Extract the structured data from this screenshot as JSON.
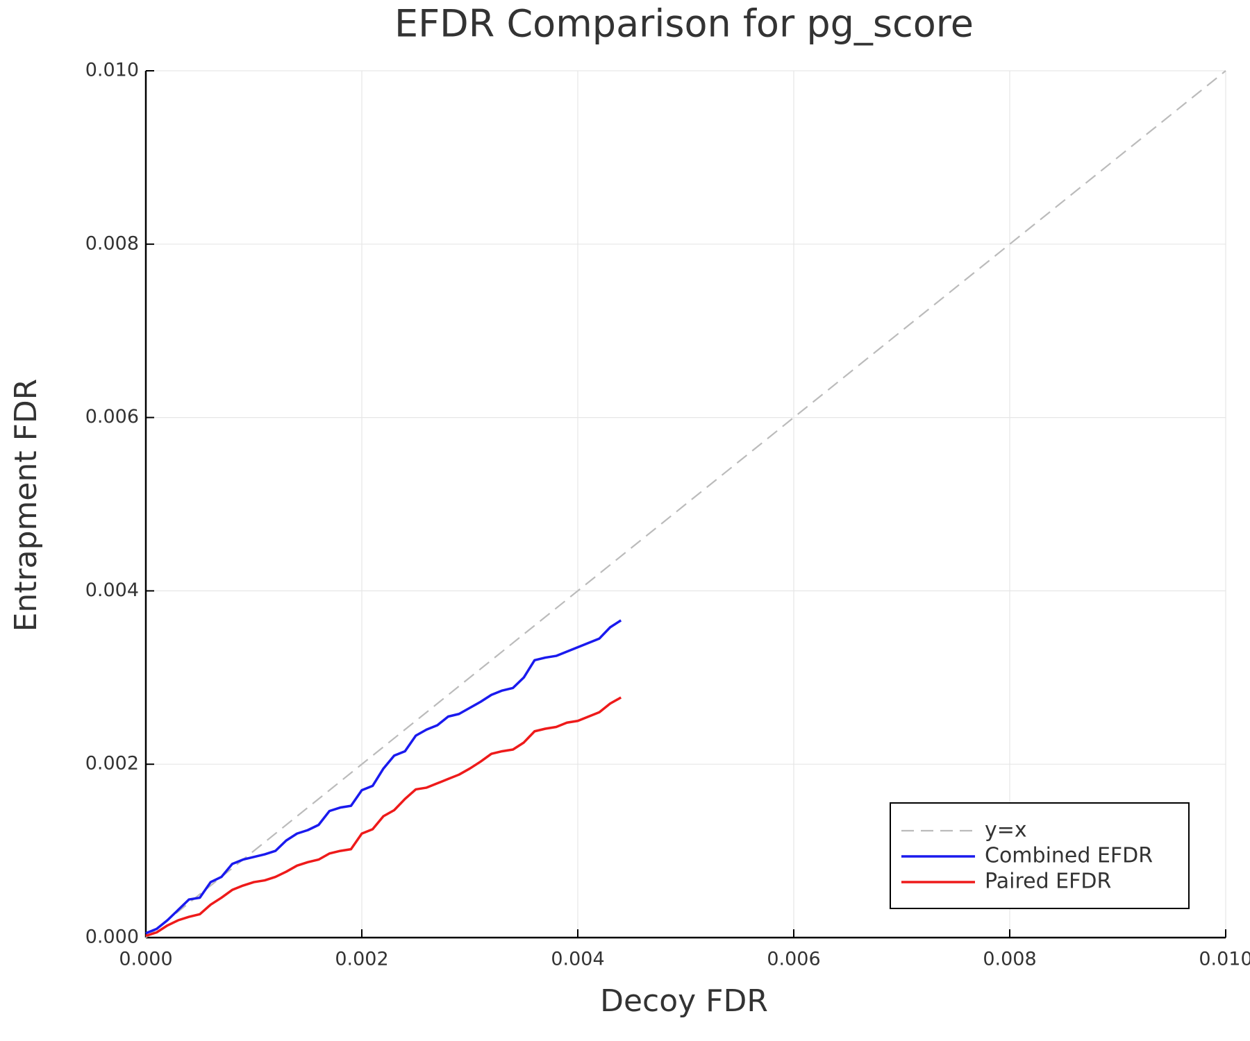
{
  "chart_data": {
    "type": "line",
    "title": "EFDR Comparison for pg_score",
    "xlabel": "Decoy FDR",
    "ylabel": "Entrapment FDR",
    "xlim": [
      0,
      0.01
    ],
    "ylim": [
      0,
      0.01
    ],
    "xticks": [
      {
        "value": 0,
        "label": "0.000"
      },
      {
        "value": 0.002,
        "label": "0.002"
      },
      {
        "value": 0.004,
        "label": "0.004"
      },
      {
        "value": 0.006,
        "label": "0.006"
      },
      {
        "value": 0.008,
        "label": "0.008"
      },
      {
        "value": 0.01,
        "label": "0.010"
      }
    ],
    "yticks": [
      {
        "value": 0,
        "label": "0.000"
      },
      {
        "value": 0.002,
        "label": "0.002"
      },
      {
        "value": 0.004,
        "label": "0.004"
      },
      {
        "value": 0.006,
        "label": "0.006"
      },
      {
        "value": 0.008,
        "label": "0.008"
      },
      {
        "value": 0.01,
        "label": "0.010"
      }
    ],
    "grid": true,
    "legend": "bottom right",
    "series": [
      {
        "name": "y=x",
        "color": "#bbbbbb",
        "dashed": true,
        "x": [
          0,
          0.01
        ],
        "values": [
          0,
          0.01
        ]
      },
      {
        "name": "Combined EFDR",
        "color": "#1a1aee",
        "dashed": false,
        "x": [
          0,
          0.0001,
          0.0002,
          0.0003,
          0.0004,
          0.0005,
          0.0006,
          0.0007,
          0.0008,
          0.0009,
          0.001,
          0.0011,
          0.0012,
          0.0013,
          0.0014,
          0.0015,
          0.0016,
          0.0017,
          0.0018,
          0.0019,
          0.002,
          0.0021,
          0.0022,
          0.0023,
          0.0024,
          0.0025,
          0.0026,
          0.0027,
          0.0028,
          0.0029,
          0.003,
          0.0031,
          0.0032,
          0.0033,
          0.0034,
          0.0035,
          0.0036,
          0.0037,
          0.0038,
          0.0039,
          0.004,
          0.0041,
          0.0042,
          0.0043,
          0.0044
        ],
        "values": [
          5e-05,
          0.0001,
          0.0002,
          0.00032,
          0.00044,
          0.00046,
          0.00064,
          0.0007,
          0.00085,
          0.0009,
          0.00093,
          0.00096,
          0.001,
          0.00112,
          0.0012,
          0.00124,
          0.0013,
          0.00146,
          0.0015,
          0.00152,
          0.0017,
          0.00175,
          0.00195,
          0.0021,
          0.00215,
          0.00233,
          0.0024,
          0.00245,
          0.00255,
          0.00258,
          0.00265,
          0.00272,
          0.0028,
          0.00285,
          0.00288,
          0.003,
          0.0032,
          0.00323,
          0.00325,
          0.0033,
          0.00335,
          0.0034,
          0.00345,
          0.00358,
          0.00366
        ]
      },
      {
        "name": "Paired EFDR",
        "color": "#ee1a1a",
        "dashed": false,
        "x": [
          0,
          0.0001,
          0.0002,
          0.0003,
          0.0004,
          0.0005,
          0.0006,
          0.0007,
          0.0008,
          0.0009,
          0.001,
          0.0011,
          0.0012,
          0.0013,
          0.0014,
          0.0015,
          0.0016,
          0.0017,
          0.0018,
          0.0019,
          0.002,
          0.0021,
          0.0022,
          0.0023,
          0.0024,
          0.0025,
          0.0026,
          0.0027,
          0.0028,
          0.0029,
          0.003,
          0.0031,
          0.0032,
          0.0033,
          0.0034,
          0.0035,
          0.0036,
          0.0037,
          0.0038,
          0.0039,
          0.004,
          0.0041,
          0.0042,
          0.0043,
          0.0044
        ],
        "values": [
          2e-05,
          6e-05,
          0.00014,
          0.0002,
          0.00024,
          0.00027,
          0.00038,
          0.00046,
          0.00055,
          0.0006,
          0.00064,
          0.00066,
          0.0007,
          0.00076,
          0.00083,
          0.00087,
          0.0009,
          0.00097,
          0.001,
          0.00102,
          0.0012,
          0.00125,
          0.0014,
          0.00147,
          0.0016,
          0.00171,
          0.00173,
          0.00178,
          0.00183,
          0.00188,
          0.00195,
          0.00203,
          0.00212,
          0.00215,
          0.00217,
          0.00225,
          0.00238,
          0.00241,
          0.00243,
          0.00248,
          0.0025,
          0.00255,
          0.0026,
          0.0027,
          0.00277
        ]
      }
    ]
  }
}
